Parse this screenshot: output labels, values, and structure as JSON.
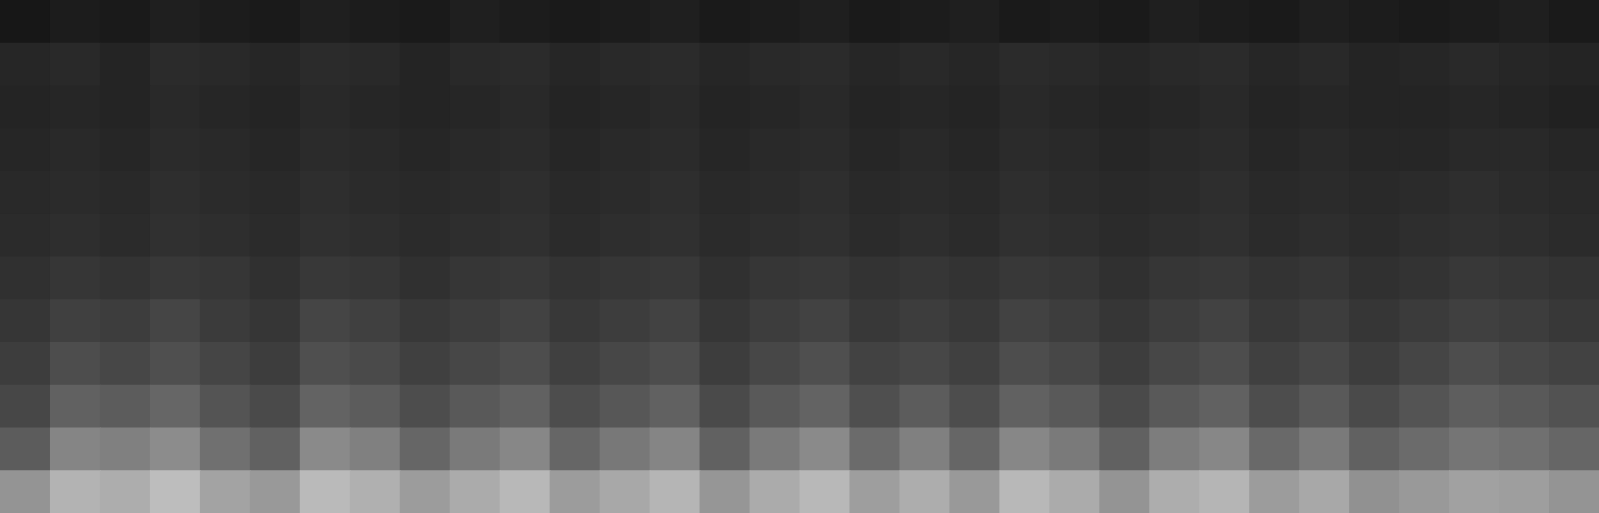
{
  "chart_data": {
    "type": "heatmap",
    "tick_labels": false,
    "value_range": [
      0,
      100
    ],
    "cells": [
      [
        9,
        11,
        10,
        12,
        11,
        10,
        12,
        11,
        10,
        12,
        11,
        10,
        11,
        12,
        10,
        11,
        12,
        10,
        11,
        12,
        10,
        11,
        10,
        12,
        11,
        10,
        12,
        11,
        10,
        11,
        12,
        10
      ],
      [
        15,
        16,
        14,
        17,
        16,
        15,
        17,
        16,
        14,
        16,
        17,
        15,
        16,
        17,
        15,
        16,
        17,
        15,
        16,
        15,
        17,
        16,
        15,
        16,
        17,
        15,
        16,
        14,
        15,
        16,
        15,
        14
      ],
      [
        14,
        15,
        14,
        16,
        15,
        14,
        16,
        15,
        14,
        15,
        16,
        14,
        15,
        16,
        14,
        15,
        16,
        14,
        15,
        14,
        16,
        15,
        14,
        15,
        16,
        14,
        15,
        14,
        14,
        15,
        14,
        13
      ],
      [
        15,
        16,
        15,
        17,
        16,
        15,
        17,
        16,
        15,
        16,
        17,
        15,
        16,
        17,
        15,
        16,
        17,
        15,
        16,
        15,
        17,
        16,
        15,
        16,
        17,
        15,
        16,
        15,
        15,
        16,
        16,
        15
      ],
      [
        16,
        17,
        16,
        18,
        17,
        16,
        18,
        17,
        16,
        17,
        18,
        16,
        17,
        18,
        16,
        17,
        18,
        16,
        17,
        16,
        18,
        17,
        16,
        17,
        18,
        16,
        17,
        16,
        17,
        18,
        17,
        16
      ],
      [
        17,
        18,
        17,
        19,
        18,
        17,
        19,
        18,
        17,
        18,
        19,
        17,
        18,
        19,
        17,
        18,
        19,
        17,
        18,
        17,
        19,
        18,
        17,
        18,
        19,
        17,
        18,
        17,
        18,
        19,
        18,
        17
      ],
      [
        19,
        21,
        20,
        22,
        21,
        19,
        22,
        21,
        19,
        21,
        22,
        20,
        21,
        22,
        19,
        21,
        22,
        20,
        21,
        20,
        22,
        21,
        19,
        21,
        22,
        20,
        21,
        19,
        20,
        22,
        21,
        20
      ],
      [
        21,
        25,
        24,
        27,
        23,
        21,
        27,
        25,
        22,
        24,
        26,
        22,
        24,
        26,
        21,
        24,
        26,
        22,
        24,
        22,
        26,
        24,
        21,
        24,
        26,
        22,
        24,
        21,
        23,
        25,
        24,
        22
      ],
      [
        24,
        30,
        28,
        31,
        27,
        24,
        31,
        29,
        25,
        28,
        30,
        25,
        28,
        30,
        24,
        28,
        31,
        26,
        28,
        25,
        30,
        28,
        24,
        28,
        30,
        25,
        28,
        24,
        27,
        30,
        28,
        26
      ],
      [
        28,
        38,
        36,
        40,
        33,
        29,
        39,
        36,
        30,
        35,
        38,
        30,
        34,
        38,
        29,
        35,
        39,
        31,
        36,
        30,
        38,
        35,
        29,
        35,
        38,
        30,
        35,
        29,
        33,
        37,
        35,
        32
      ],
      [
        36,
        52,
        50,
        55,
        44,
        38,
        54,
        50,
        40,
        48,
        53,
        40,
        47,
        52,
        38,
        48,
        54,
        42,
        50,
        40,
        53,
        48,
        38,
        49,
        53,
        41,
        48,
        38,
        42,
        46,
        44,
        40
      ],
      [
        58,
        70,
        68,
        74,
        64,
        60,
        73,
        69,
        61,
        67,
        72,
        61,
        66,
        71,
        59,
        67,
        72,
        62,
        68,
        60,
        72,
        67,
        58,
        68,
        71,
        61,
        66,
        57,
        60,
        63,
        62,
        58
      ]
    ]
  }
}
